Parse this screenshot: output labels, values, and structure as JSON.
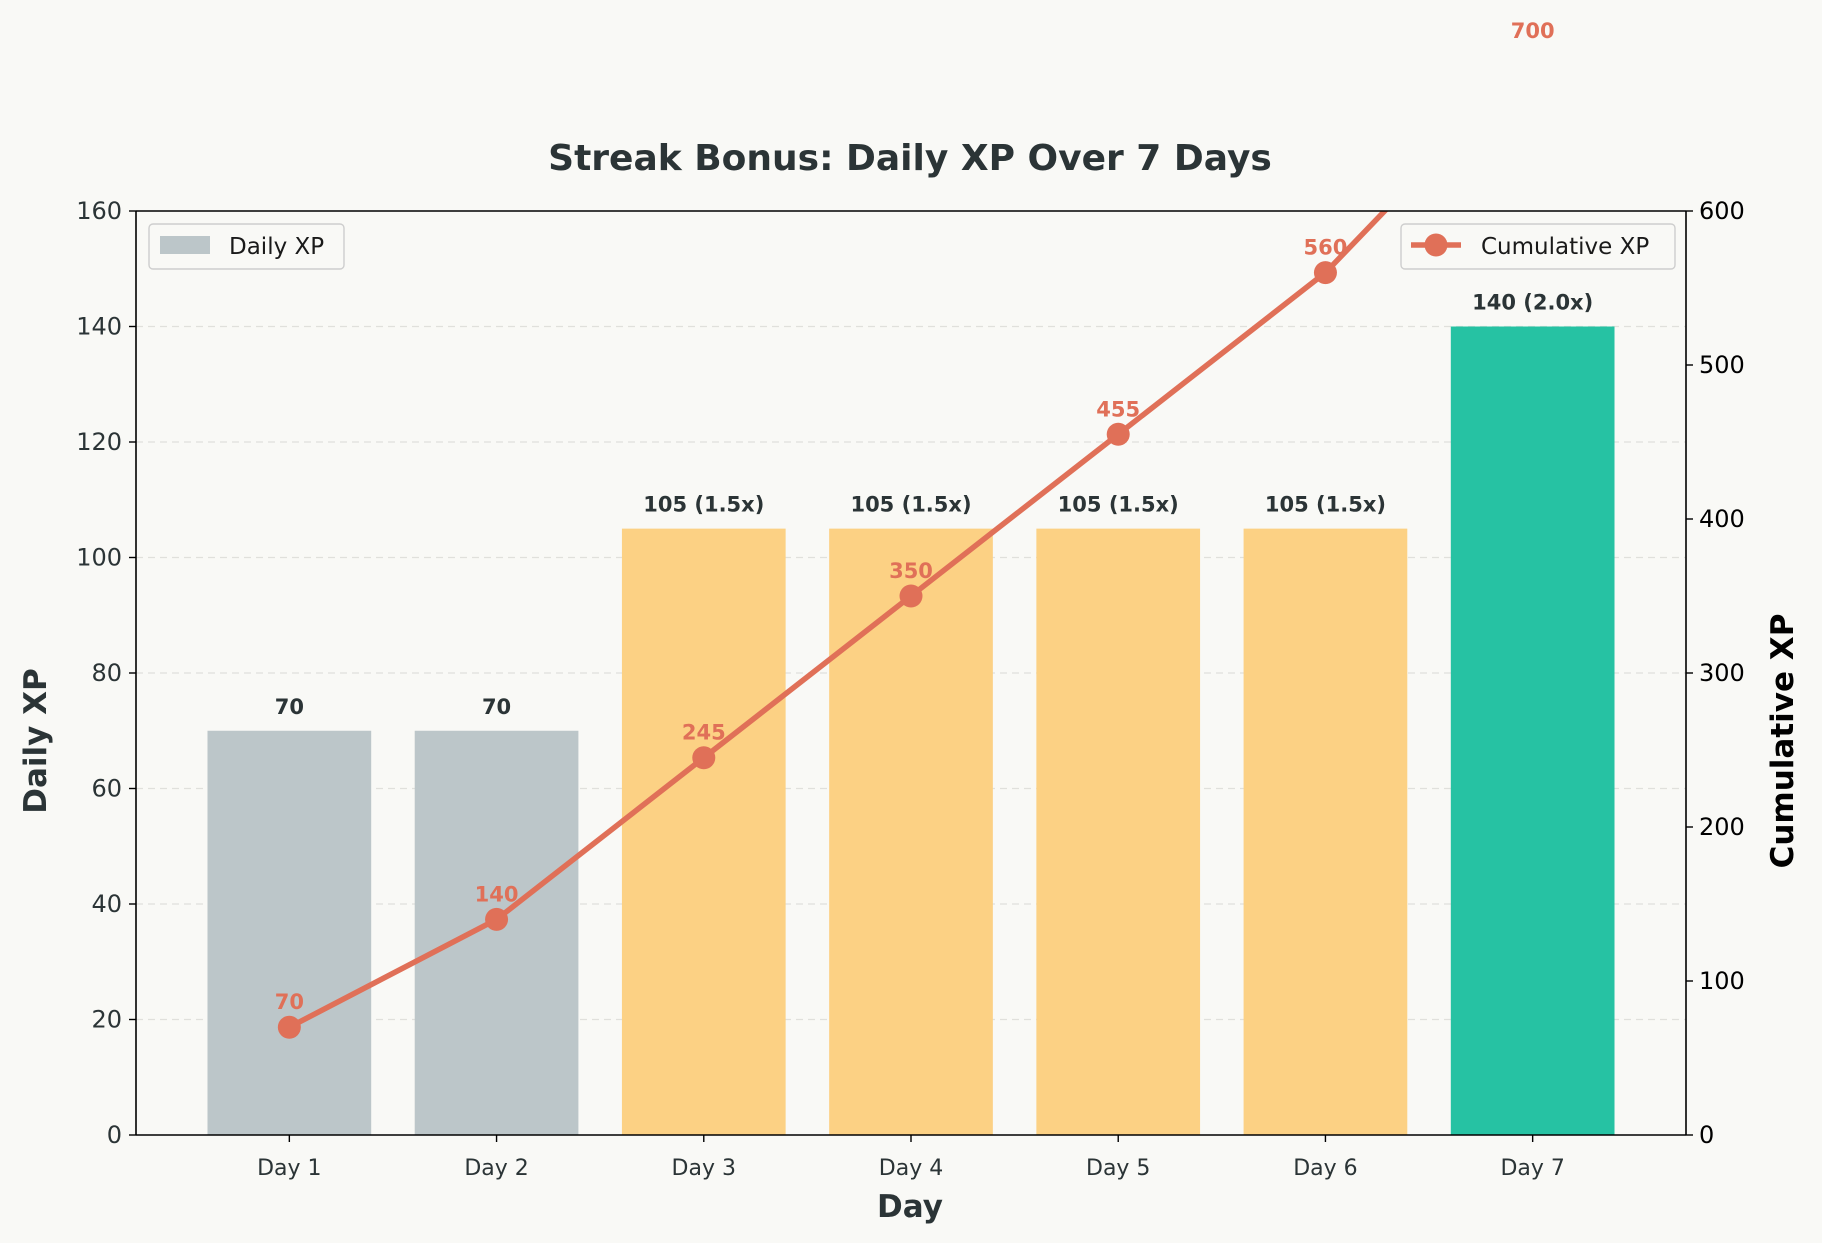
{
  "chart_data": {
    "type": "bar",
    "title": "Streak Bonus: Daily XP Over 7 Days",
    "xlabel": "Day",
    "ylabel": "Daily XP",
    "y2label": "Cumulative XP",
    "ylim": [
      0,
      160
    ],
    "y2lim": [
      0,
      600
    ],
    "yticks": [
      0,
      20,
      40,
      60,
      80,
      100,
      120,
      140,
      160
    ],
    "y2ticks": [
      0,
      100,
      200,
      300,
      400,
      500,
      600
    ],
    "grid": "horizontal dashed",
    "categories": [
      "Day 1",
      "Day 2",
      "Day 3",
      "Day 4",
      "Day 5",
      "Day 6",
      "Day 7"
    ],
    "series": [
      {
        "name": "Daily XP",
        "type": "bar",
        "axis": "left",
        "values": [
          70,
          70,
          105,
          105,
          105,
          105,
          140
        ],
        "labels": [
          "70",
          "70",
          "105 (1.5x)",
          "105 (1.5x)",
          "105 (1.5x)",
          "105 (1.5x)",
          "140 (2.0x)"
        ],
        "colors": [
          "#bcc6c9",
          "#bcc6c9",
          "#fcd184",
          "#fcd184",
          "#fcd184",
          "#fcd184",
          "#26c2a3"
        ],
        "legend_color": "#bcc6c9",
        "legend_position": "top-left"
      },
      {
        "name": "Cumulative XP",
        "type": "line",
        "axis": "right",
        "values": [
          70,
          140,
          245,
          350,
          455,
          560,
          700
        ],
        "labels": [
          "70",
          "140",
          "245",
          "350",
          "455",
          "560",
          "700"
        ],
        "color": "#e07058",
        "marker": "circle",
        "legend_position": "top-right"
      }
    ]
  }
}
